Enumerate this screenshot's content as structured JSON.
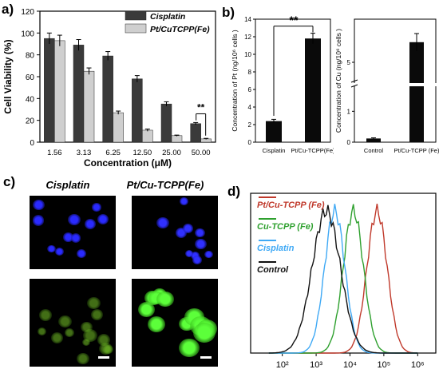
{
  "panels": {
    "a": "a)",
    "b": "b)",
    "c": "c)",
    "d": "d)"
  },
  "chart_data": [
    {
      "type": "bar",
      "panel": "a",
      "categories": [
        "1.56",
        "3.13",
        "6.25",
        "12.50",
        "25.00",
        "50.00"
      ],
      "series": [
        {
          "name": "Cisplatin",
          "values": [
            95,
            89,
            79,
            58,
            35,
            17
          ],
          "errors": [
            5,
            5,
            4,
            3,
            2,
            1
          ],
          "color": "#3a3a3a"
        },
        {
          "name": "Pt/CuTCPP(Fe)",
          "values": [
            93,
            65,
            27,
            11,
            6,
            3
          ],
          "errors": [
            5,
            3,
            1.5,
            1,
            0.5,
            0.5
          ],
          "color": "#cfcfcf"
        }
      ],
      "xlabel": "Concentration (μM)",
      "ylabel": "Cell Viability (%)",
      "ylim": [
        0,
        120
      ],
      "yticks": [
        "0",
        "20",
        "40",
        "60",
        "80",
        "100",
        "120"
      ],
      "annotation": "**"
    },
    {
      "type": "bar",
      "panel": "b-left",
      "categories": [
        "Cisplatin",
        "Pt/Cu-TCPP(Fe)"
      ],
      "values": [
        2.4,
        11.8
      ],
      "errors": [
        0.2,
        0.6
      ],
      "ylabel": "Concentration of Pt (ng/10⁶ cells )",
      "ylim": [
        0,
        14
      ],
      "yticks": [
        "0",
        "2",
        "4",
        "6",
        "8",
        "10",
        "12",
        "14"
      ],
      "annotation": "**"
    },
    {
      "type": "bar",
      "panel": "b-right",
      "categories": [
        "Control",
        "Pt/Cu-TCPP (Fe)"
      ],
      "values": [
        0.12,
        5.7
      ],
      "errors": [
        0.02,
        0.3
      ],
      "ylabel": "Concentration of Cu (ng/10⁶ cells )",
      "yticks": [
        "0",
        "1",
        "5"
      ],
      "axis_break": true
    },
    {
      "type": "line",
      "panel": "d",
      "xscale": "log",
      "xticks": [
        "10²",
        "10³",
        "10⁴",
        "10⁵",
        "10⁶"
      ],
      "series": [
        {
          "name": "Pt/Cu-TCPP (Fe)",
          "color": "#c0392b",
          "peak_log10": 4.8
        },
        {
          "name": "Cu-TCPP (Fe)",
          "color": "#2ea02e",
          "peak_log10": 4.1
        },
        {
          "name": "Cisplatin",
          "color": "#3fa9f5",
          "peak_log10": 3.55
        },
        {
          "name": "Control",
          "color": "#111111",
          "peak_log10": 3.3
        }
      ]
    }
  ],
  "microscopy": {
    "col_titles": [
      "Cisplatin",
      "Pt/Cu-TCPP(Fe)"
    ],
    "rows": [
      "blue-channel",
      "green-channel"
    ]
  }
}
